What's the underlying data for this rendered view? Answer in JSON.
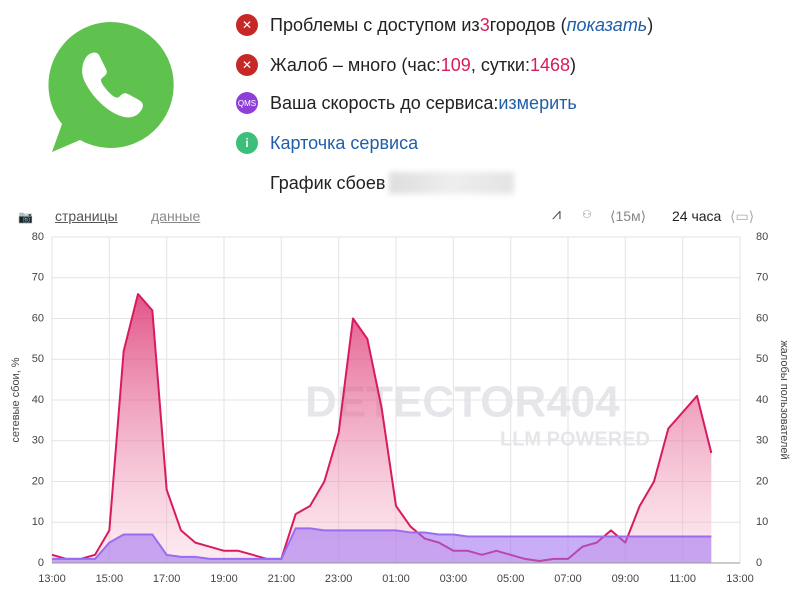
{
  "header": {
    "lines": [
      {
        "parts": [
          "Проблемы с доступом из ",
          "3",
          " городов (",
          "показать",
          ")"
        ]
      },
      {
        "parts": [
          "Жалоб – много (час: ",
          109,
          ", сутки: ",
          1468,
          ")"
        ]
      },
      {
        "icon": "QMS",
        "parts": [
          "Ваша скорость до сервиса: ",
          "измерить"
        ]
      },
      {
        "icon": "i",
        "parts": [
          "Карточка сервиса"
        ]
      },
      {
        "parts": [
          "График сбоев"
        ]
      }
    ]
  },
  "toolbar": {
    "tabs": [
      "страницы",
      "данные"
    ],
    "interval": "15м",
    "range": "24 часа"
  },
  "chart_data": {
    "type": "area",
    "y_label": "сетевые сбои, %",
    "y2_label": "жалобы пользователей",
    "watermark": [
      "DETECTOR404",
      "LLM POWERED"
    ],
    "x": [
      "13:00",
      "13:30",
      "14:00",
      "14:30",
      "15:00",
      "15:30",
      "16:00",
      "16:30",
      "17:00",
      "17:30",
      "18:00",
      "18:30",
      "19:00",
      "19:30",
      "20:00",
      "20:30",
      "21:00",
      "21:30",
      "22:00",
      "22:30",
      "23:00",
      "23:30",
      "00:00",
      "00:30",
      "01:00",
      "01:30",
      "02:00",
      "02:30",
      "03:00",
      "03:30",
      "04:00",
      "04:30",
      "05:00",
      "05:30",
      "06:00",
      "06:30",
      "07:00",
      "07:30",
      "08:00",
      "08:30",
      "09:00",
      "09:30",
      "10:00",
      "10:30",
      "11:00",
      "11:30",
      "12:00",
      "12:30",
      "13:00"
    ],
    "xticks": [
      "13:00",
      "15:00",
      "17:00",
      "19:00",
      "21:00",
      "23:00",
      "01:00",
      "03:00",
      "05:00",
      "07:00",
      "09:00",
      "11:00",
      "13:00"
    ],
    "ylim": [
      0,
      80
    ],
    "yticks": [
      0,
      10,
      20,
      30,
      40,
      50,
      60,
      70,
      80
    ],
    "y2lim": [
      0,
      80
    ],
    "y2ticks": [
      0,
      10,
      20,
      30,
      40,
      50,
      60,
      70,
      80
    ],
    "grid": true,
    "series": [
      {
        "color": "#d81b60",
        "axis": "y2",
        "values": [
          2,
          1,
          1,
          2,
          8,
          52,
          66,
          62,
          18,
          8,
          5,
          4,
          3,
          3,
          2,
          1,
          1,
          12,
          14,
          20,
          32,
          60,
          55,
          38,
          14,
          9,
          6,
          5,
          3,
          3,
          2,
          3,
          2,
          1,
          0.5,
          1,
          1,
          4,
          5,
          8,
          5,
          14,
          20,
          33,
          37,
          41,
          27,
          null,
          null
        ]
      },
      {
        "color": "#9c6cf0",
        "values": [
          1,
          1,
          1,
          1,
          5,
          7,
          7,
          7,
          2,
          1.5,
          1.5,
          1,
          1,
          1,
          1,
          1,
          1,
          8.5,
          8.5,
          8,
          8,
          8,
          8,
          8,
          8,
          7.5,
          7.5,
          7,
          7,
          6.5,
          6.5,
          6.5,
          6.5,
          6.5,
          6.5,
          6.5,
          6.5,
          6.5,
          6.5,
          6.5,
          6.5,
          6.5,
          6.5,
          6.5,
          6.5,
          6.5,
          6.5,
          null,
          null
        ]
      }
    ]
  }
}
